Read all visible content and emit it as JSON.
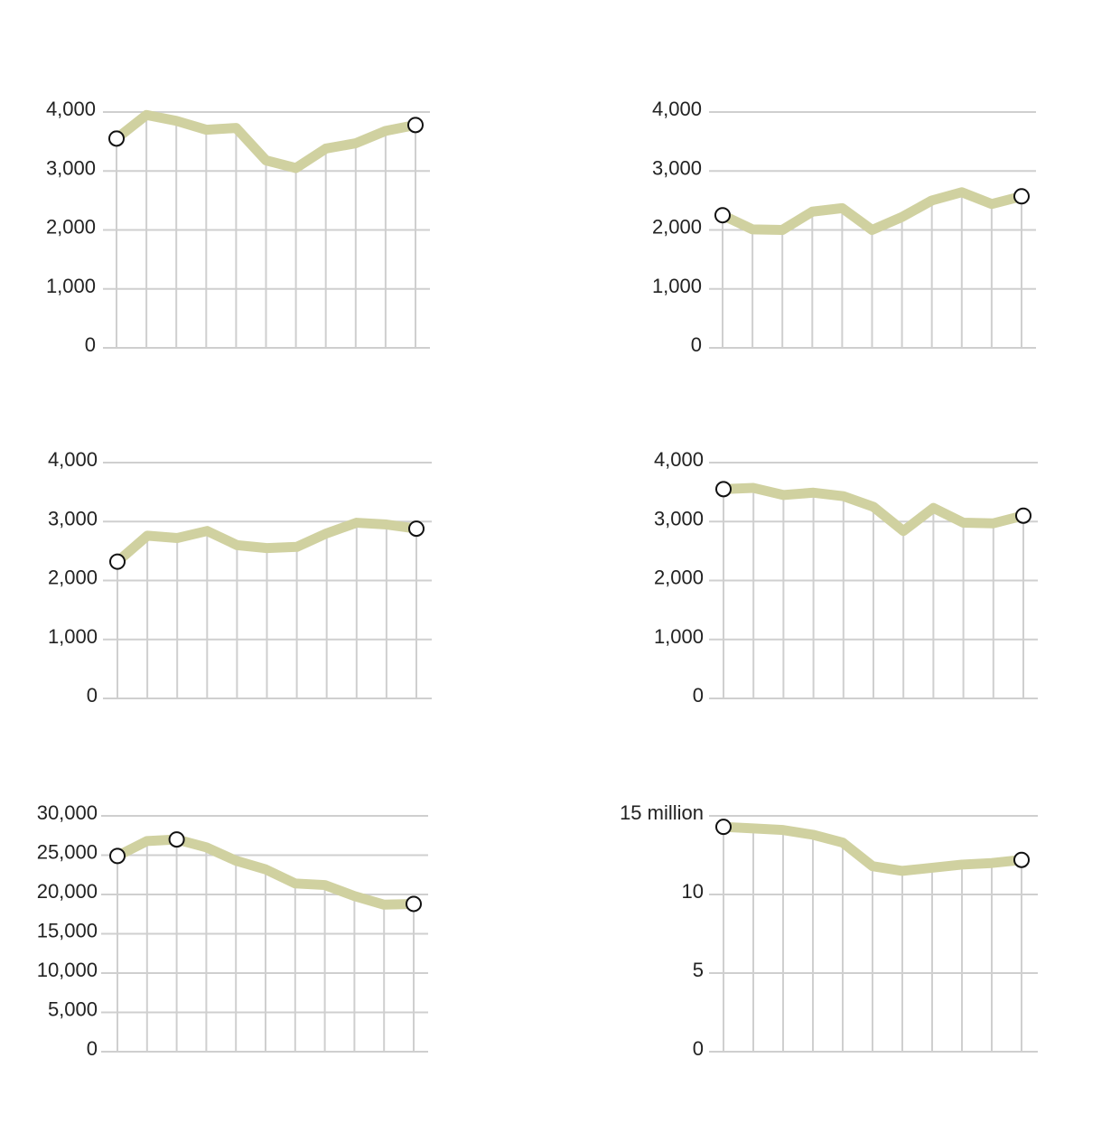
{
  "colors": {
    "line": "#d0d1a0",
    "grid": "#cfcfcf",
    "marker_stroke": "#111111",
    "text": "#222222"
  },
  "chart_data": [
    {
      "type": "line",
      "x": [
        1,
        2,
        3,
        4,
        5,
        6,
        7,
        8,
        9,
        10,
        11
      ],
      "values": [
        3550,
        3950,
        3850,
        3700,
        3730,
        3180,
        3050,
        3380,
        3470,
        3680,
        3780
      ],
      "ylim": [
        0,
        4000
      ],
      "yticks": [
        0,
        1000,
        2000,
        3000,
        4000
      ],
      "ytick_labels": [
        "0",
        "1,000",
        "2,000",
        "3,000",
        "4,000"
      ],
      "markers": [
        0,
        10
      ],
      "grid": true
    },
    {
      "type": "line",
      "x": [
        1,
        2,
        3,
        4,
        5,
        6,
        7,
        8,
        9,
        10,
        11
      ],
      "values": [
        2250,
        2010,
        2000,
        2310,
        2370,
        2000,
        2220,
        2500,
        2640,
        2440,
        2570
      ],
      "ylim": [
        0,
        4000
      ],
      "yticks": [
        0,
        1000,
        2000,
        3000,
        4000
      ],
      "ytick_labels": [
        "0",
        "1,000",
        "2,000",
        "3,000",
        "4,000"
      ],
      "markers": [
        0,
        10
      ],
      "grid": true
    },
    {
      "type": "line",
      "x": [
        1,
        2,
        3,
        4,
        5,
        6,
        7,
        8,
        9,
        10,
        11
      ],
      "values": [
        2320,
        2760,
        2720,
        2840,
        2600,
        2550,
        2570,
        2800,
        2980,
        2950,
        2880
      ],
      "ylim": [
        0,
        4000
      ],
      "yticks": [
        0,
        1000,
        2000,
        3000,
        4000
      ],
      "ytick_labels": [
        "0",
        "1,000",
        "2,000",
        "3,000",
        "4,000"
      ],
      "markers": [
        0,
        10
      ],
      "grid": true
    },
    {
      "type": "line",
      "x": [
        1,
        2,
        3,
        4,
        5,
        6,
        7,
        8,
        9,
        10,
        11
      ],
      "values": [
        3550,
        3570,
        3450,
        3490,
        3430,
        3250,
        2840,
        3230,
        2980,
        2970,
        3100
      ],
      "ylim": [
        0,
        4000
      ],
      "yticks": [
        0,
        1000,
        2000,
        3000,
        4000
      ],
      "ytick_labels": [
        "0",
        "1,000",
        "2,000",
        "3,000",
        "4,000"
      ],
      "markers": [
        0,
        10
      ],
      "grid": true
    },
    {
      "type": "line",
      "x": [
        1,
        2,
        3,
        4,
        5,
        6,
        7,
        8,
        9,
        10,
        11
      ],
      "values": [
        24900,
        26800,
        27000,
        26000,
        24300,
        23200,
        21400,
        21200,
        19800,
        18700,
        18800
      ],
      "ylim": [
        0,
        30000
      ],
      "yticks": [
        0,
        5000,
        10000,
        15000,
        20000,
        25000,
        30000
      ],
      "ytick_labels": [
        "0",
        "5,000",
        "10,000",
        "15,000",
        "20,000",
        "25,000",
        "30,000"
      ],
      "markers": [
        0,
        2,
        10
      ],
      "grid": true
    },
    {
      "type": "line",
      "x": [
        1,
        2,
        3,
        4,
        5,
        6,
        7,
        8,
        9,
        10,
        11
      ],
      "values": [
        14.3,
        14.2,
        14.1,
        13.8,
        13.3,
        11.8,
        11.5,
        11.7,
        11.9,
        12.0,
        12.2
      ],
      "ylim": [
        0,
        15
      ],
      "yticks": [
        0,
        5,
        10,
        15
      ],
      "ytick_labels": [
        "0",
        "5",
        "10",
        "15 million"
      ],
      "markers": [
        0,
        10
      ],
      "grid": true
    }
  ]
}
